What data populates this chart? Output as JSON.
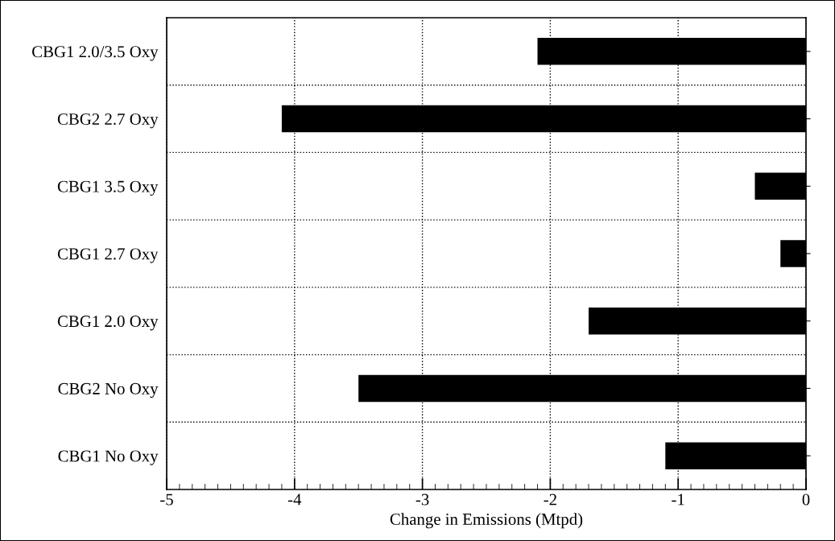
{
  "chart_data": {
    "type": "bar",
    "orientation": "horizontal",
    "xlabel": "Change in Emissions (Mtpd)",
    "categories": [
      "CBG1 2.0/3.5 Oxy",
      "CBG2 2.7 Oxy",
      "CBG1 3.5 Oxy",
      "CBG1 2.7 Oxy",
      "CBG1 2.0 Oxy",
      "CBG2 No Oxy",
      "CBG1 No Oxy"
    ],
    "values": [
      -2.1,
      -4.1,
      -0.4,
      -0.2,
      -1.7,
      -3.5,
      -1.1
    ],
    "color": "#000000",
    "xlim": [
      -5,
      0
    ],
    "xticks": [
      -5,
      -4,
      -3,
      -2,
      -1,
      0
    ],
    "grid": true,
    "line_style": "dotted"
  }
}
